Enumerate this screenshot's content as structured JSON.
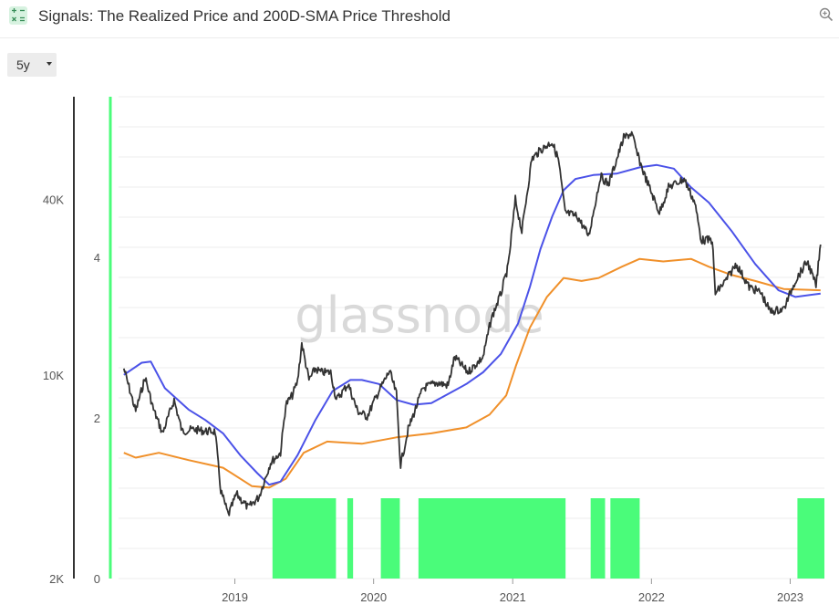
{
  "header": {
    "title": "Signals: The Realized Price and 200D-SMA Price Threshold",
    "app_icon": "calculator-icon",
    "zoom_icon": "zoom-in-icon"
  },
  "range_selector": {
    "value": "5y"
  },
  "watermark": "glassnode",
  "colors": {
    "price": "#333333",
    "sma200": "#4b52e8",
    "realized": "#f0902a",
    "signal": "#4afc7a",
    "signal_axis": "#4afc7a"
  },
  "chart_data": {
    "type": "line",
    "title": "Signals: The Realized Price and 200D-SMA Price Threshold",
    "x_axis": {
      "tick_labels": [
        "2019",
        "2020",
        "2021",
        "2022",
        "2023"
      ],
      "range": [
        "2018-03",
        "2023-04"
      ]
    },
    "y_axis_left": {
      "scale": "log",
      "tick_labels": [
        "2K",
        "10K",
        "40K"
      ],
      "range": [
        2000,
        90000
      ]
    },
    "y_axis_right": {
      "tick_labels": [
        "0",
        "2",
        "4"
      ],
      "range": [
        0,
        6
      ]
    },
    "grid": true,
    "series": [
      {
        "key": "price",
        "axis": "left",
        "points": [
          [
            "2018-03-15",
            10500
          ],
          [
            "2018-04-15",
            7500
          ],
          [
            "2018-05-10",
            9800
          ],
          [
            "2018-06-01",
            7600
          ],
          [
            "2018-06-25",
            6300
          ],
          [
            "2018-07-25",
            8200
          ],
          [
            "2018-08-15",
            6400
          ],
          [
            "2018-09-15",
            6500
          ],
          [
            "2018-10-15",
            6400
          ],
          [
            "2018-11-10",
            6400
          ],
          [
            "2018-11-25",
            4000
          ],
          [
            "2018-12-15",
            3300
          ],
          [
            "2019-01-05",
            3900
          ],
          [
            "2019-02-05",
            3500
          ],
          [
            "2019-03-05",
            3800
          ],
          [
            "2019-04-05",
            5000
          ],
          [
            "2019-05-01",
            5400
          ],
          [
            "2019-05-15",
            7900
          ],
          [
            "2019-06-01",
            8500
          ],
          [
            "2019-06-15",
            9500
          ],
          [
            "2019-06-26",
            12800
          ],
          [
            "2019-07-15",
            9600
          ],
          [
            "2019-08-01",
            10500
          ],
          [
            "2019-08-15",
            10200
          ],
          [
            "2019-09-10",
            10200
          ],
          [
            "2019-09-25",
            8200
          ],
          [
            "2019-10-26",
            9300
          ],
          [
            "2019-11-20",
            7500
          ],
          [
            "2019-12-15",
            7200
          ],
          [
            "2020-01-15",
            8800
          ],
          [
            "2020-02-12",
            10300
          ],
          [
            "2020-03-01",
            8600
          ],
          [
            "2020-03-12",
            4900
          ],
          [
            "2020-04-01",
            6500
          ],
          [
            "2020-05-10",
            9000
          ],
          [
            "2020-06-15",
            9400
          ],
          [
            "2020-07-15",
            9200
          ],
          [
            "2020-08-01",
            11500
          ],
          [
            "2020-09-05",
            10200
          ],
          [
            "2020-10-15",
            11500
          ],
          [
            "2020-11-05",
            15500
          ],
          [
            "2020-12-01",
            19000
          ],
          [
            "2020-12-20",
            23500
          ],
          [
            "2021-01-08",
            40000
          ],
          [
            "2021-01-25",
            31000
          ],
          [
            "2021-02-20",
            55000
          ],
          [
            "2021-03-15",
            59000
          ],
          [
            "2021-04-14",
            63000
          ],
          [
            "2021-05-01",
            55000
          ],
          [
            "2021-05-19",
            36000
          ],
          [
            "2021-06-20",
            35000
          ],
          [
            "2021-07-20",
            30000
          ],
          [
            "2021-08-20",
            48000
          ],
          [
            "2021-09-10",
            45000
          ],
          [
            "2021-10-20",
            65000
          ],
          [
            "2021-11-10",
            67500
          ],
          [
            "2021-11-25",
            57000
          ],
          [
            "2021-12-15",
            48000
          ],
          [
            "2022-01-22",
            36000
          ],
          [
            "2022-02-15",
            44000
          ],
          [
            "2022-03-28",
            47000
          ],
          [
            "2022-04-25",
            39000
          ],
          [
            "2022-05-12",
            29000
          ],
          [
            "2022-06-10",
            29000
          ],
          [
            "2022-06-18",
            19000
          ],
          [
            "2022-07-15",
            21000
          ],
          [
            "2022-08-12",
            24000
          ],
          [
            "2022-09-15",
            20000
          ],
          [
            "2022-10-15",
            19200
          ],
          [
            "2022-11-09",
            16500
          ],
          [
            "2022-12-15",
            16800
          ],
          [
            "2023-01-14",
            21000
          ],
          [
            "2023-02-15",
            24500
          ],
          [
            "2023-03-10",
            20200
          ],
          [
            "2023-03-22",
            28000
          ]
        ]
      },
      {
        "key": "sma200",
        "axis": "left",
        "points": [
          [
            "2018-03-15",
            10000
          ],
          [
            "2018-05-01",
            11000
          ],
          [
            "2018-05-25",
            11100
          ],
          [
            "2018-07-01",
            9000
          ],
          [
            "2018-09-01",
            7600
          ],
          [
            "2018-10-15",
            7000
          ],
          [
            "2018-12-01",
            6300
          ],
          [
            "2019-01-15",
            5300
          ],
          [
            "2019-03-01",
            4600
          ],
          [
            "2019-04-01",
            4200
          ],
          [
            "2019-05-01",
            4300
          ],
          [
            "2019-06-15",
            5300
          ],
          [
            "2019-08-01",
            7000
          ],
          [
            "2019-09-15",
            8800
          ],
          [
            "2019-11-01",
            9600
          ],
          [
            "2019-12-01",
            9600
          ],
          [
            "2020-01-15",
            9300
          ],
          [
            "2020-03-01",
            8200
          ],
          [
            "2020-04-15",
            7900
          ],
          [
            "2020-06-01",
            8000
          ],
          [
            "2020-07-15",
            8600
          ],
          [
            "2020-09-01",
            9300
          ],
          [
            "2020-10-15",
            10200
          ],
          [
            "2020-12-01",
            11800
          ],
          [
            "2021-01-15",
            15000
          ],
          [
            "2021-02-15",
            20000
          ],
          [
            "2021-03-15",
            27000
          ],
          [
            "2021-04-15",
            35000
          ],
          [
            "2021-05-15",
            43000
          ],
          [
            "2021-06-15",
            47000
          ],
          [
            "2021-08-01",
            48500
          ],
          [
            "2021-10-01",
            49000
          ],
          [
            "2021-12-01",
            51500
          ],
          [
            "2022-01-15",
            52500
          ],
          [
            "2022-03-01",
            51000
          ],
          [
            "2022-04-15",
            44000
          ],
          [
            "2022-06-01",
            39000
          ],
          [
            "2022-08-01",
            31000
          ],
          [
            "2022-10-01",
            24000
          ],
          [
            "2022-12-01",
            19500
          ],
          [
            "2023-01-15",
            18500
          ],
          [
            "2023-03-22",
            19000
          ]
        ]
      },
      {
        "key": "realized",
        "axis": "left",
        "points": [
          [
            "2018-03-15",
            5400
          ],
          [
            "2018-04-15",
            5200
          ],
          [
            "2018-06-15",
            5400
          ],
          [
            "2018-09-01",
            5100
          ],
          [
            "2018-12-01",
            4800
          ],
          [
            "2019-02-15",
            4150
          ],
          [
            "2019-04-01",
            4100
          ],
          [
            "2019-05-15",
            4400
          ],
          [
            "2019-07-01",
            5400
          ],
          [
            "2019-09-01",
            5900
          ],
          [
            "2019-12-01",
            5800
          ],
          [
            "2020-03-01",
            6100
          ],
          [
            "2020-06-01",
            6300
          ],
          [
            "2020-09-01",
            6600
          ],
          [
            "2020-11-01",
            7300
          ],
          [
            "2020-12-15",
            8500
          ],
          [
            "2021-01-10",
            10800
          ],
          [
            "2021-02-15",
            14500
          ],
          [
            "2021-04-01",
            18500
          ],
          [
            "2021-05-15",
            21500
          ],
          [
            "2021-07-01",
            21000
          ],
          [
            "2021-08-15",
            21500
          ],
          [
            "2021-10-15",
            23500
          ],
          [
            "2021-12-01",
            25000
          ],
          [
            "2022-02-01",
            24500
          ],
          [
            "2022-04-15",
            25000
          ],
          [
            "2022-06-01",
            23500
          ],
          [
            "2022-08-01",
            22000
          ],
          [
            "2022-10-01",
            21000
          ],
          [
            "2022-12-15",
            19700
          ],
          [
            "2023-03-22",
            19500
          ]
        ]
      }
    ],
    "signal_bands": [
      [
        "2019-04-10",
        "2019-09-24"
      ],
      [
        "2019-10-24",
        "2019-11-08"
      ],
      [
        "2020-01-20",
        "2020-03-10"
      ],
      [
        "2020-04-28",
        "2021-05-20"
      ],
      [
        "2021-07-25",
        "2021-09-01"
      ],
      [
        "2021-09-15",
        "2021-12-01"
      ],
      [
        "2023-01-20",
        "2023-04-01"
      ]
    ],
    "signal_value": 1
  }
}
